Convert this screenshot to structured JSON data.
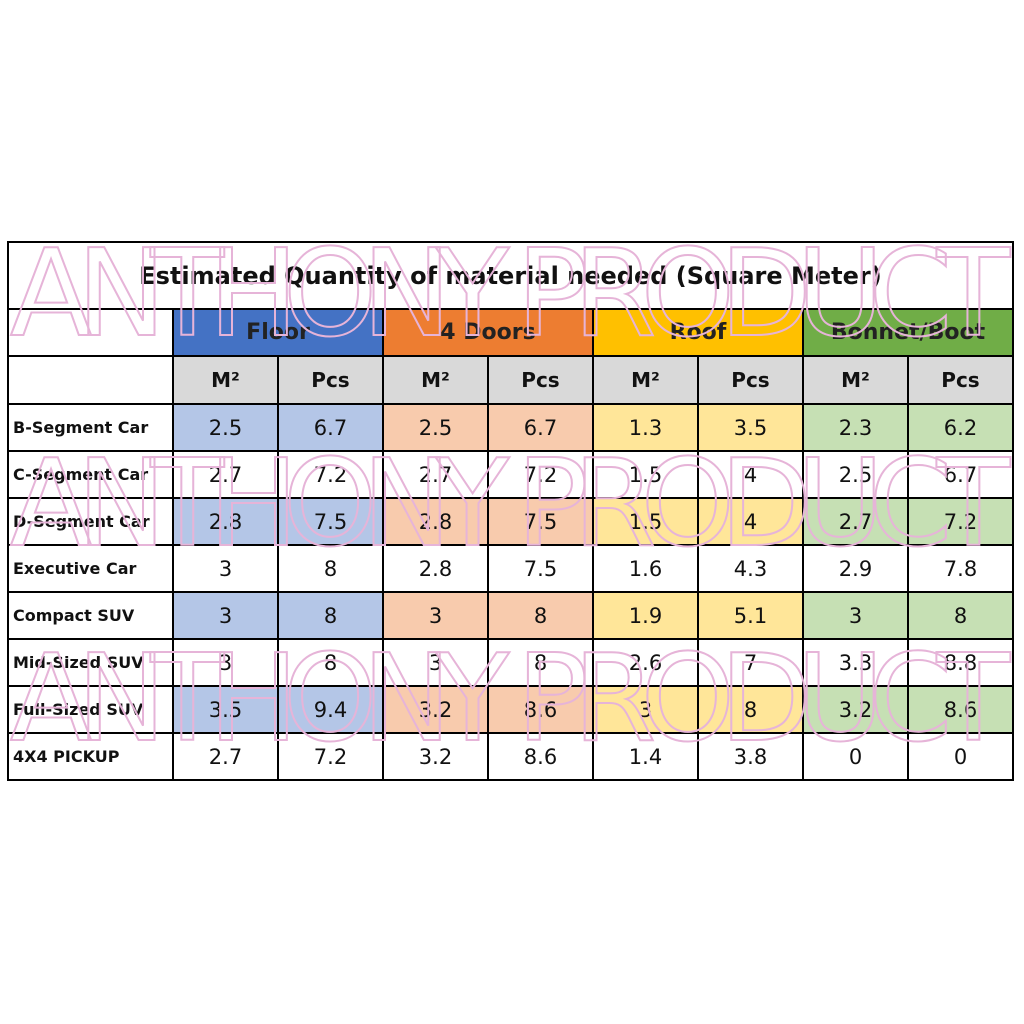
{
  "watermark": "ANTHONY PRODUCT",
  "table": {
    "title": "Estimated Quantity of material needed (Square Meter)",
    "groups": [
      "Floor",
      "4 Doors",
      "Roof",
      "Bonnet/Boot"
    ],
    "subheaders": [
      "M²",
      "Pcs",
      "M²",
      "Pcs",
      "M²",
      "Pcs",
      "M²",
      "Pcs"
    ],
    "rows": [
      {
        "label": "B-Segment Car",
        "values": [
          2.5,
          6.7,
          2.5,
          6.7,
          1.3,
          3.5,
          2.3,
          6.2
        ]
      },
      {
        "label": "C-Segment Car",
        "values": [
          2.7,
          7.2,
          2.7,
          7.2,
          1.5,
          4,
          2.5,
          6.7
        ]
      },
      {
        "label": "D-Segment Car",
        "values": [
          2.8,
          7.5,
          2.8,
          7.5,
          1.5,
          4,
          2.7,
          7.2
        ]
      },
      {
        "label": "Executive Car",
        "values": [
          3,
          8,
          2.8,
          7.5,
          1.6,
          4.3,
          2.9,
          7.8
        ]
      },
      {
        "label": "Compact SUV",
        "values": [
          3,
          8,
          3,
          8,
          1.9,
          5.1,
          3,
          8
        ]
      },
      {
        "label": "Mid-Sized SUV",
        "values": [
          3,
          8,
          3,
          8,
          2.6,
          7,
          3.3,
          8.8
        ]
      },
      {
        "label": "Full-Sized SUV",
        "values": [
          3.5,
          9.4,
          3.2,
          8.6,
          3,
          8,
          3.2,
          8.6
        ]
      },
      {
        "label": "4X4 PICKUP",
        "values": [
          2.7,
          7.2,
          3.2,
          8.6,
          1.4,
          3.8,
          0,
          0
        ]
      }
    ]
  }
}
